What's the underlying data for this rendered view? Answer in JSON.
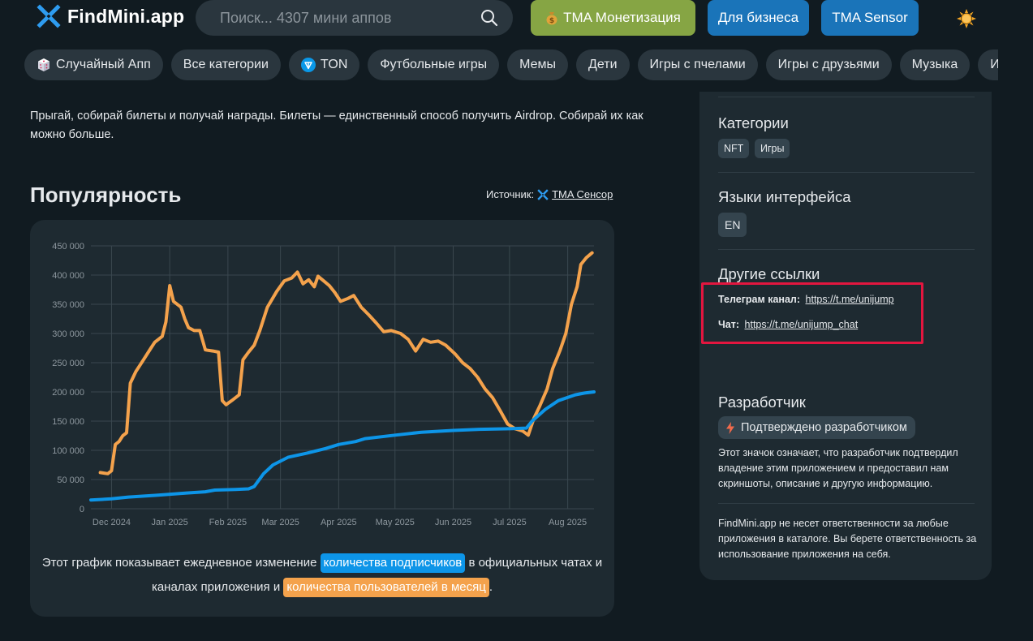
{
  "header": {
    "logo_text": "FindMini.app",
    "search_placeholder": "Поиск... 4307 мини аппов",
    "btn_monetization": "TMA Монетизация",
    "btn_business": "Для бизнеса",
    "btn_sensor": "TMA Sensor",
    "accent_green": "#86a544",
    "accent_blue": "#1a74b9"
  },
  "categories": [
    {
      "label": "Случайный Апп",
      "icon": "dice-icon"
    },
    {
      "label": "Все категории",
      "icon": ""
    },
    {
      "label": "TON",
      "icon": "ton-icon"
    },
    {
      "label": "Футбольные игры",
      "icon": ""
    },
    {
      "label": "Мемы",
      "icon": ""
    },
    {
      "label": "Дети",
      "icon": ""
    },
    {
      "label": "Игры с пчелами",
      "icon": ""
    },
    {
      "label": "Игры с друзьями",
      "icon": ""
    },
    {
      "label": "Музыка",
      "icon": ""
    },
    {
      "label": "Игры квесты",
      "icon": ""
    }
  ],
  "main": {
    "description": "Прыгай, собирай билеты и получай награды. Билеты — единственный способ получить Airdrop. Собирай их как можно больше.",
    "popularity_title": "Популярность",
    "source_label": "Источник:",
    "source_link": "TMA Сенсор",
    "caption_part1": "Этот график показывает ежедневное изменение",
    "caption_hl1": "количества подписчиков",
    "caption_part2": "в официальных чатах и каналах приложения и",
    "caption_hl2": "количества пользователей в месяц",
    "caption_end": "."
  },
  "chart_data": {
    "type": "line",
    "y_ticks": [
      "0",
      "50 000",
      "100 000",
      "150 000",
      "200 000",
      "250 000",
      "300 000",
      "350 000",
      "400 000",
      "450 000"
    ],
    "x_ticks": [
      "Dec 2024",
      "Jan 2025",
      "Feb 2025",
      "Mar 2025",
      "Apr 2025",
      "May 2025",
      "Jun 2025",
      "Jul 2025",
      "Aug 2025"
    ],
    "ylim": [
      0,
      450000
    ],
    "x_range": [
      "2024-11-20",
      "2025-08-15"
    ],
    "grid": true,
    "series": [
      {
        "color": "#f4a24c",
        "points": [
          [
            "2024-11-25",
            62000
          ],
          [
            "2024-11-29",
            60000
          ],
          [
            "2024-12-01",
            65000
          ],
          [
            "2024-12-03",
            110000
          ],
          [
            "2024-12-05",
            115000
          ],
          [
            "2024-12-07",
            125000
          ],
          [
            "2024-12-09",
            130000
          ],
          [
            "2024-12-11",
            215000
          ],
          [
            "2024-12-14",
            235000
          ],
          [
            "2024-12-18",
            255000
          ],
          [
            "2024-12-22",
            275000
          ],
          [
            "2024-12-24",
            285000
          ],
          [
            "2024-12-28",
            295000
          ],
          [
            "2024-12-30",
            320000
          ],
          [
            "2025-01-01",
            382000
          ],
          [
            "2025-01-03",
            355000
          ],
          [
            "2025-01-07",
            345000
          ],
          [
            "2025-01-09",
            325000
          ],
          [
            "2025-01-11",
            310000
          ],
          [
            "2025-01-14",
            305000
          ],
          [
            "2025-01-17",
            305000
          ],
          [
            "2025-01-20",
            272000
          ],
          [
            "2025-01-24",
            270000
          ],
          [
            "2025-01-27",
            268000
          ],
          [
            "2025-01-29",
            185000
          ],
          [
            "2025-01-31",
            178000
          ],
          [
            "2025-02-03",
            185000
          ],
          [
            "2025-02-07",
            195000
          ],
          [
            "2025-02-09",
            255000
          ],
          [
            "2025-02-12",
            268000
          ],
          [
            "2025-02-15",
            280000
          ],
          [
            "2025-02-18",
            305000
          ],
          [
            "2025-02-22",
            345000
          ],
          [
            "2025-02-27",
            372000
          ],
          [
            "2025-03-03",
            390000
          ],
          [
            "2025-03-07",
            395000
          ],
          [
            "2025-03-10",
            405000
          ],
          [
            "2025-03-13",
            385000
          ],
          [
            "2025-03-16",
            392000
          ],
          [
            "2025-03-19",
            380000
          ],
          [
            "2025-03-21",
            398000
          ],
          [
            "2025-03-24",
            390000
          ],
          [
            "2025-03-27",
            382000
          ],
          [
            "2025-03-30",
            370000
          ],
          [
            "2025-04-02",
            355000
          ],
          [
            "2025-04-06",
            360000
          ],
          [
            "2025-04-09",
            365000
          ],
          [
            "2025-04-13",
            345000
          ],
          [
            "2025-04-17",
            332000
          ],
          [
            "2025-04-21",
            318000
          ],
          [
            "2025-04-25",
            303000
          ],
          [
            "2025-04-29",
            305000
          ],
          [
            "2025-05-04",
            300000
          ],
          [
            "2025-05-08",
            290000
          ],
          [
            "2025-05-12",
            270000
          ],
          [
            "2025-05-16",
            290000
          ],
          [
            "2025-05-20",
            285000
          ],
          [
            "2025-05-24",
            287000
          ],
          [
            "2025-05-28",
            280000
          ],
          [
            "2025-06-02",
            265000
          ],
          [
            "2025-06-06",
            250000
          ],
          [
            "2025-06-10",
            240000
          ],
          [
            "2025-06-14",
            225000
          ],
          [
            "2025-06-18",
            205000
          ],
          [
            "2025-06-22",
            190000
          ],
          [
            "2025-06-26",
            168000
          ],
          [
            "2025-06-30",
            145000
          ],
          [
            "2025-07-04",
            137000
          ],
          [
            "2025-07-08",
            133000
          ],
          [
            "2025-07-11",
            126000
          ],
          [
            "2025-07-14",
            155000
          ],
          [
            "2025-07-17",
            175000
          ],
          [
            "2025-07-21",
            205000
          ],
          [
            "2025-07-24",
            240000
          ],
          [
            "2025-07-28",
            272000
          ],
          [
            "2025-07-31",
            300000
          ],
          [
            "2025-08-03",
            350000
          ],
          [
            "2025-08-06",
            380000
          ],
          [
            "2025-08-08",
            418000
          ],
          [
            "2025-08-11",
            430000
          ],
          [
            "2025-08-14",
            438000
          ]
        ]
      },
      {
        "color": "#0d95e8",
        "points": [
          [
            "2024-11-20",
            15000
          ],
          [
            "2024-12-01",
            17000
          ],
          [
            "2024-12-10",
            20000
          ],
          [
            "2024-12-25",
            23000
          ],
          [
            "2025-01-10",
            27000
          ],
          [
            "2025-01-20",
            29000
          ],
          [
            "2025-01-25",
            32000
          ],
          [
            "2025-02-05",
            33000
          ],
          [
            "2025-02-12",
            34000
          ],
          [
            "2025-02-15",
            38000
          ],
          [
            "2025-02-20",
            60000
          ],
          [
            "2025-02-25",
            75000
          ],
          [
            "2025-03-05",
            88000
          ],
          [
            "2025-03-15",
            95000
          ],
          [
            "2025-03-25",
            103000
          ],
          [
            "2025-04-01",
            110000
          ],
          [
            "2025-04-10",
            115000
          ],
          [
            "2025-04-15",
            120000
          ],
          [
            "2025-05-01",
            126000
          ],
          [
            "2025-05-15",
            131000
          ],
          [
            "2025-06-01",
            134000
          ],
          [
            "2025-06-15",
            136000
          ],
          [
            "2025-07-01",
            137000
          ],
          [
            "2025-07-10",
            138000
          ],
          [
            "2025-07-13",
            150000
          ],
          [
            "2025-07-20",
            170000
          ],
          [
            "2025-07-27",
            185000
          ],
          [
            "2025-08-05",
            195000
          ],
          [
            "2025-08-10",
            198000
          ],
          [
            "2025-08-15",
            200000
          ]
        ]
      }
    ]
  },
  "sidebar": {
    "categories_title": "Категории",
    "categories_tags": [
      "NFT",
      "Игры"
    ],
    "languages_title": "Языки интерфейса",
    "languages_tags": [
      "EN"
    ],
    "links_title": "Другие ссылки",
    "telegram_label": "Телеграм канал:",
    "telegram_url": "https://t.me/unijump",
    "chat_label": "Чат:",
    "chat_url": "https://t.me/unijump_chat",
    "developer_title": "Разработчик",
    "verified_badge": "Подтверждено разработчиком",
    "verified_text": "Этот значок означает, что разработчик подтвердил владение этим приложением и предоставил нам скриншоты, описание и другую информацию.",
    "disclaimer": "FindMini.app не несет ответственности за любые приложения в каталоге. Вы берете ответственность за использование приложения на себя.",
    "highlight_color": "#e3163f"
  }
}
